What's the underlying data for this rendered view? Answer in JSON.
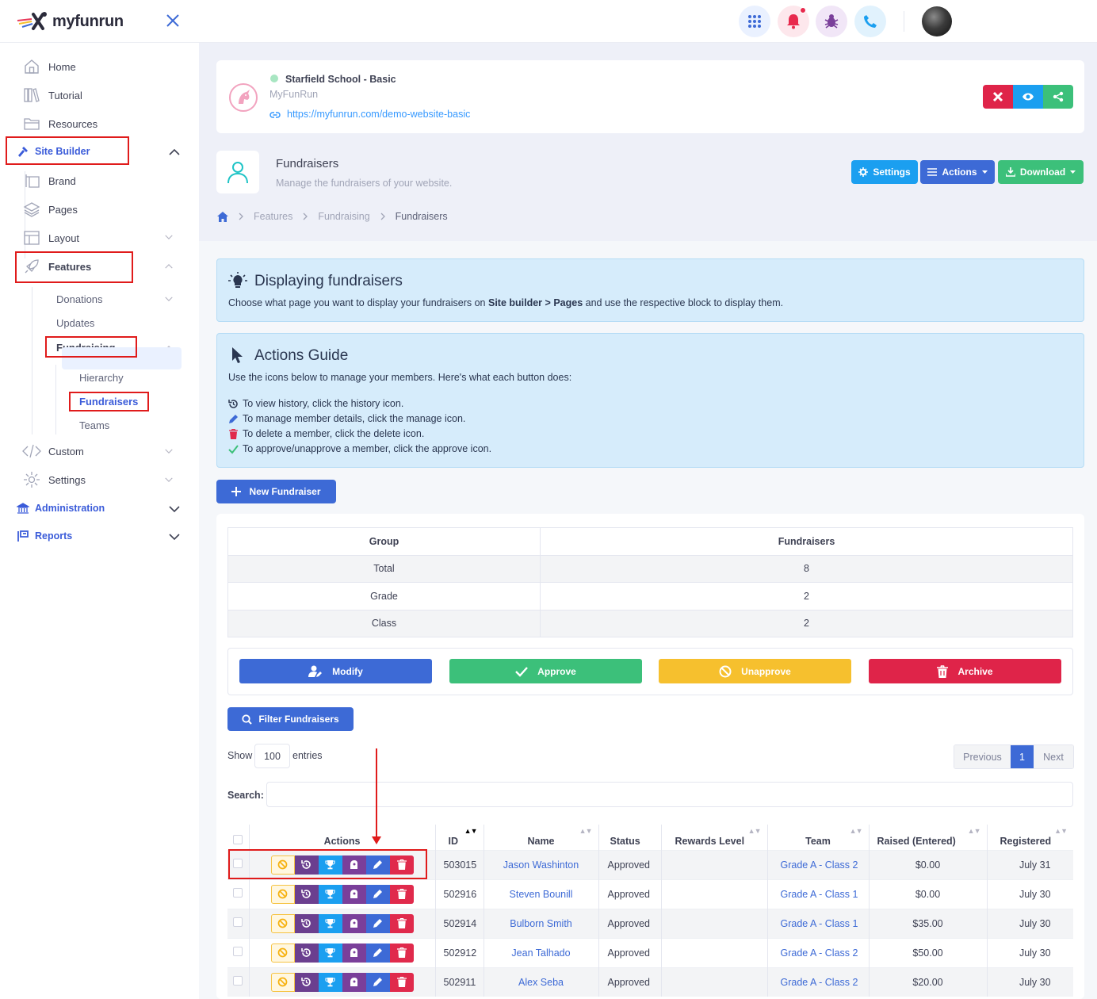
{
  "app": {
    "logo_text": "myfunrun"
  },
  "sidebar": {
    "home": "Home",
    "tutorial": "Tutorial",
    "resources": "Resources",
    "site_builder": "Site Builder",
    "brand": "Brand",
    "pages": "Pages",
    "layout": "Layout",
    "features": "Features",
    "donations": "Donations",
    "updates": "Updates",
    "fundraising": "Fundraising",
    "hierarchy": "Hierarchy",
    "fundraisers": "Fundraisers",
    "teams": "Teams",
    "custom": "Custom",
    "settings": "Settings",
    "administration": "Administration",
    "reports": "Reports"
  },
  "site": {
    "title": "Starfield School - Basic",
    "subtitle": "MyFunRun",
    "url": "https://myfunrun.com/demo-website-basic"
  },
  "page": {
    "title": "Fundraisers",
    "subtitle": "Manage the fundraisers of your website.",
    "settings_label": "Settings",
    "actions_label": "Actions",
    "download_label": "Download",
    "breadcrumb": [
      "Features",
      "Fundraising",
      "Fundraisers"
    ]
  },
  "alert_display": {
    "title": "Displaying fundraisers",
    "text_before": "Choose what page you want to display your fundraisers on ",
    "bold1": "Site builder",
    "sep": " > ",
    "bold2": "Pages",
    "text_after": " and use the respective block to display them."
  },
  "guide": {
    "title": "Actions Guide",
    "intro": "Use the icons below to manage your members. Here's what each button does:",
    "lines": [
      "To view history, click the history icon.",
      "To manage member details, click the manage icon.",
      "To delete a member, click the delete icon.",
      "To approve/unapprove a member, click the approve icon."
    ]
  },
  "new_fundraiser_label": "New Fundraiser",
  "group_table": {
    "headers": [
      "Group",
      "Fundraisers"
    ],
    "rows": [
      [
        "Total",
        "8"
      ],
      [
        "Grade",
        "2"
      ],
      [
        "Class",
        "2"
      ]
    ]
  },
  "bulk": {
    "modify": "Modify",
    "approve": "Approve",
    "unapprove": "Unapprove",
    "archive": "Archive"
  },
  "filter_label": "Filter Fundraisers",
  "entries": {
    "show": "Show",
    "value": "100",
    "suffix": "entries"
  },
  "pager": {
    "previous": "Previous",
    "page": "1",
    "next": "Next"
  },
  "search_label": "Search:",
  "table": {
    "headers": [
      "Actions",
      "ID",
      "Name",
      "Status",
      "Rewards Level",
      "Team",
      "Raised (Entered)",
      "Registered"
    ],
    "rows": [
      {
        "id": "503015",
        "name": "Jason Washinton",
        "status": "Approved",
        "reward": "",
        "team": "Grade A - Class 2",
        "raised": "$0.00",
        "registered": "July 31"
      },
      {
        "id": "502916",
        "name": "Steven Bounill",
        "status": "Approved",
        "reward": "",
        "team": "Grade A - Class 1",
        "raised": "$0.00",
        "registered": "July 30"
      },
      {
        "id": "502914",
        "name": "Bulborn Smith",
        "status": "Approved",
        "reward": "",
        "team": "Grade A - Class 1",
        "raised": "$35.00",
        "registered": "July 30"
      },
      {
        "id": "502912",
        "name": "Jean Talhado",
        "status": "Approved",
        "reward": "",
        "team": "Grade A - Class 2",
        "raised": "$50.00",
        "registered": "July 30"
      },
      {
        "id": "502911",
        "name": "Alex Seba",
        "status": "Approved",
        "reward": "",
        "team": "Grade A - Class 2",
        "raised": "$20.00",
        "registered": "July 30"
      }
    ]
  },
  "colors": {
    "primary": "#3d6ad6",
    "success": "#3cc07a",
    "warning": "#f6c02e",
    "danger": "#df2449",
    "info": "#1b9ff0"
  }
}
